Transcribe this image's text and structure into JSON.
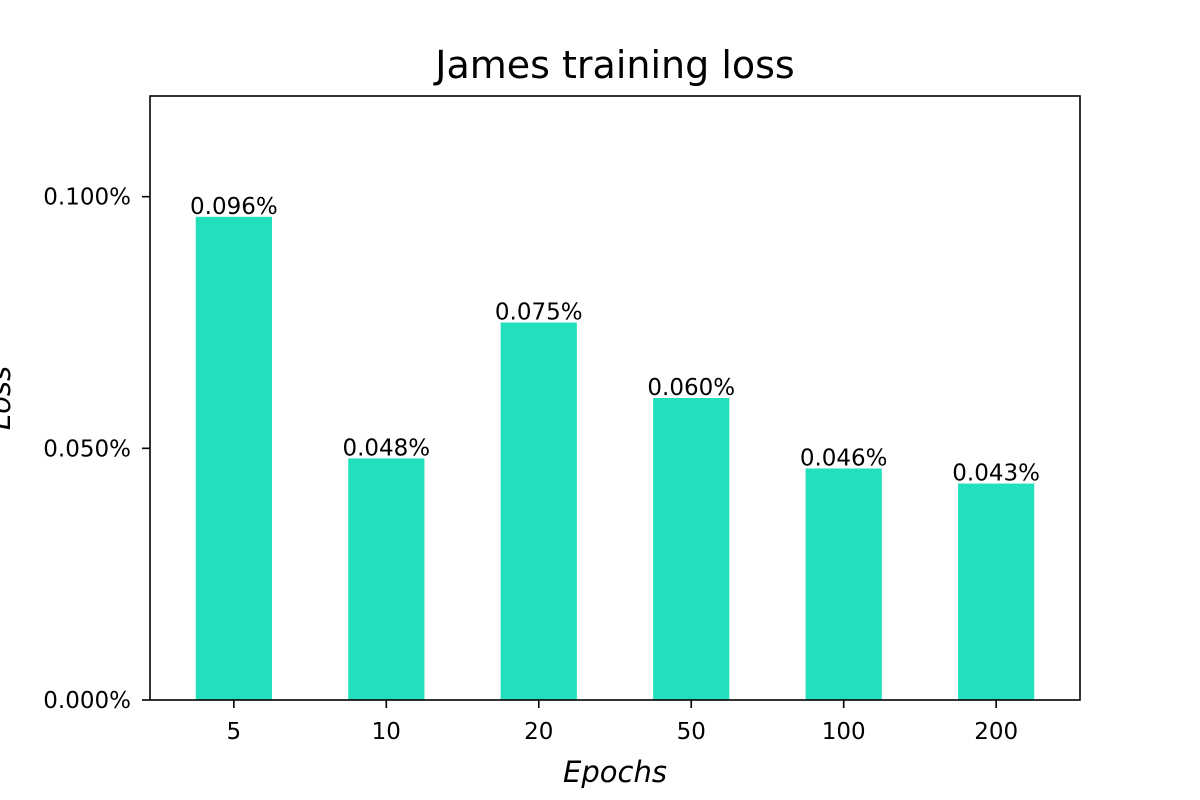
{
  "chart_data": {
    "type": "bar",
    "title": "James training loss",
    "xlabel": "Epochs",
    "ylabel": "Loss",
    "categories": [
      "5",
      "10",
      "20",
      "50",
      "100",
      "200"
    ],
    "values": [
      0.096,
      0.048,
      0.075,
      0.06,
      0.046,
      0.043
    ],
    "value_labels": [
      "0.096%",
      "0.048%",
      "0.075%",
      "0.060%",
      "0.046%",
      "0.043%"
    ],
    "ylim": [
      0,
      0.12
    ],
    "yticks": [
      0.0,
      0.05,
      0.1
    ],
    "ytick_labels": [
      "0.000%",
      "0.050%",
      "0.100%"
    ],
    "bar_color": "#22e0bb",
    "grid": false
  }
}
